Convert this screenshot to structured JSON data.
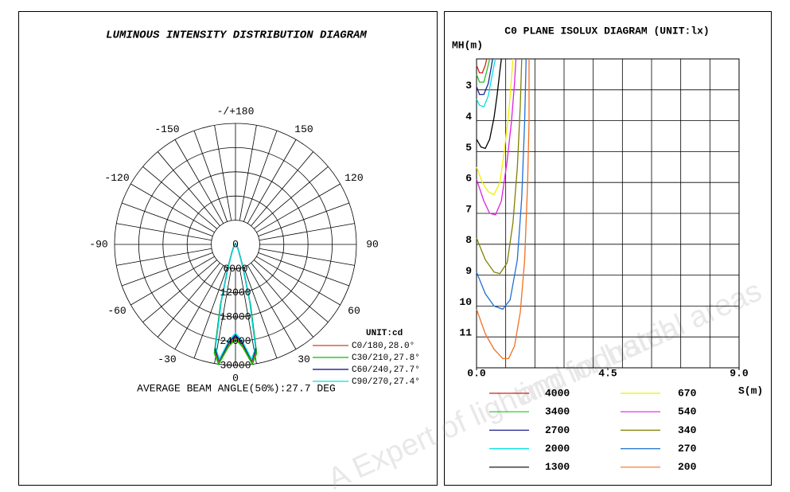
{
  "watermark": {
    "lines": [
      "A Expert of lighting for harsh",
      "and industrial areas"
    ]
  },
  "chart_data": [
    {
      "type": "polar",
      "title": "LUMINOUS INTENSITY DISTRIBUTION DIAGRAM",
      "angle_ticks": [
        {
          "value": 180,
          "label": "-/+180"
        },
        -150,
        150,
        -120,
        120,
        -90,
        90,
        -60,
        60,
        -30,
        30,
        0
      ],
      "rlim": [
        0,
        30000
      ],
      "rticks": [
        0,
        6000,
        12000,
        18000,
        24000,
        30000
      ],
      "angles": [
        -90,
        -50,
        -35,
        -25,
        -18,
        -14,
        -11,
        -8,
        -4,
        0,
        4,
        8,
        11,
        14,
        18,
        25,
        35,
        50,
        90
      ],
      "series": [
        {
          "name": "C0/180,28.0°",
          "color": "#d04020",
          "values": [
            0,
            300,
            800,
            2000,
            6000,
            15000,
            27000,
            29500,
            25000,
            23000,
            25000,
            29500,
            27000,
            15000,
            6000,
            2000,
            800,
            300,
            0
          ]
        },
        {
          "name": "C30/210,27.8°",
          "color": "#00c000",
          "values": [
            0,
            300,
            800,
            2000,
            6200,
            15500,
            27500,
            30000,
            25500,
            23500,
            25500,
            30000,
            27500,
            15500,
            6200,
            2000,
            800,
            300,
            0
          ]
        },
        {
          "name": "C60/240,27.7°",
          "color": "#000080",
          "values": [
            0,
            300,
            800,
            1900,
            5800,
            14800,
            26500,
            29000,
            24500,
            22500,
            24500,
            29000,
            26500,
            14800,
            5800,
            1900,
            800,
            300,
            0
          ]
        },
        {
          "name": "C90/270,27.4°",
          "color": "#00e0e0",
          "values": [
            0,
            300,
            700,
            1800,
            5600,
            14500,
            26000,
            28800,
            24000,
            22000,
            24000,
            28800,
            26000,
            14500,
            5600,
            1800,
            700,
            300,
            0
          ]
        }
      ],
      "unit_label": "UNIT:cd",
      "footnote": "AVERAGE BEAM ANGLE(50%):27.7 DEG"
    },
    {
      "type": "line",
      "title": "C0 PLANE ISOLUX DIAGRAM (UNIT:lx)",
      "y_label": "MH(m)",
      "x_label": "S(m)",
      "xlim": [
        0,
        9
      ],
      "xticks": [
        {
          "value": 0,
          "label": "0.0"
        },
        {
          "value": 4.5,
          "label": "4.5"
        },
        {
          "value": 9,
          "label": "9.0"
        }
      ],
      "ylim": [
        2,
        12
      ],
      "y_inverted": true,
      "yticks": [
        3,
        4,
        5,
        6,
        7,
        8,
        9,
        10,
        11
      ],
      "grid": true,
      "series": [
        {
          "name": "4000",
          "color": "#d02020",
          "x": [
            0,
            0.1,
            0.2,
            0.3,
            0.35
          ],
          "values": [
            2.2,
            2.45,
            2.45,
            2.2,
            2
          ]
        },
        {
          "name": "3400",
          "color": "#20c020",
          "x": [
            0,
            0.1,
            0.25,
            0.35,
            0.45
          ],
          "values": [
            2.5,
            2.75,
            2.75,
            2.4,
            2
          ]
        },
        {
          "name": "2700",
          "color": "#202090",
          "x": [
            0,
            0.1,
            0.25,
            0.4,
            0.5,
            0.55
          ],
          "values": [
            2.9,
            3.15,
            3.15,
            2.8,
            2.3,
            2
          ]
        },
        {
          "name": "2000",
          "color": "#00e0e0",
          "x": [
            0,
            0.1,
            0.25,
            0.4,
            0.5,
            0.6,
            0.65
          ],
          "values": [
            3.3,
            3.5,
            3.55,
            3.2,
            2.7,
            2.2,
            2
          ]
        },
        {
          "name": "1300",
          "color": "#000000",
          "x": [
            0,
            0.15,
            0.3,
            0.45,
            0.6,
            0.7,
            0.8,
            0.85
          ],
          "values": [
            4.6,
            4.85,
            4.9,
            4.6,
            3.9,
            3.2,
            2.4,
            2
          ]
        },
        {
          "name": "670",
          "color": "#f0f000",
          "x": [
            0,
            0.2,
            0.4,
            0.6,
            0.8,
            0.95,
            1.1,
            1.2,
            1.25
          ],
          "values": [
            5.5,
            6.0,
            6.3,
            6.4,
            6.0,
            5.0,
            3.8,
            2.6,
            2
          ]
        },
        {
          "name": "540",
          "color": "#e020e0",
          "x": [
            0,
            0.25,
            0.45,
            0.65,
            0.85,
            1.05,
            1.2,
            1.3,
            1.35
          ],
          "values": [
            5.9,
            6.6,
            7.0,
            7.05,
            6.6,
            5.3,
            4.0,
            2.8,
            2
          ]
        },
        {
          "name": "340",
          "color": "#808000",
          "x": [
            0,
            0.3,
            0.6,
            0.8,
            1.05,
            1.25,
            1.4,
            1.5,
            1.55
          ],
          "values": [
            7.8,
            8.5,
            8.9,
            8.95,
            8.6,
            7.3,
            5.5,
            3.5,
            2
          ]
        },
        {
          "name": "270",
          "color": "#2070d0",
          "x": [
            0,
            0.3,
            0.6,
            0.9,
            1.15,
            1.4,
            1.55,
            1.65,
            1.7
          ],
          "values": [
            8.9,
            9.6,
            10.0,
            10.1,
            9.8,
            8.5,
            6.5,
            4.0,
            2
          ]
        },
        {
          "name": "200",
          "color": "#f07020",
          "x": [
            0,
            0.3,
            0.6,
            0.9,
            1.1,
            1.3,
            1.5,
            1.65,
            1.75,
            1.8,
            1.8
          ],
          "values": [
            10.1,
            10.9,
            11.4,
            11.7,
            11.7,
            11.3,
            10.2,
            8.5,
            6.0,
            4.0,
            2
          ]
        }
      ]
    }
  ]
}
